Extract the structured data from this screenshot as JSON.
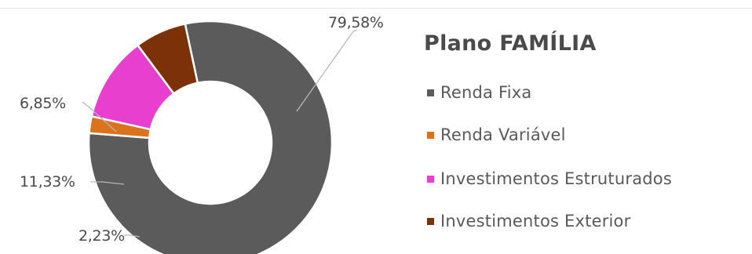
{
  "chart_data": {
    "type": "pie",
    "donut": true,
    "title": "Plano FAMÍLIA",
    "legend_position": "right",
    "series": [
      {
        "name": "Renda Fixa",
        "value": 79.58,
        "label": "79,58%",
        "color": "#5b5b5b"
      },
      {
        "name": "Renda Variável",
        "value": 2.23,
        "label": "2,23%",
        "color": "#d9731c"
      },
      {
        "name": "Investimentos Estruturados",
        "value": 11.33,
        "label": "11,33%",
        "color": "#e83fce"
      },
      {
        "name": "Investimentos Exterior",
        "value": 6.85,
        "label": "6,85%",
        "color": "#7c3208"
      }
    ]
  }
}
